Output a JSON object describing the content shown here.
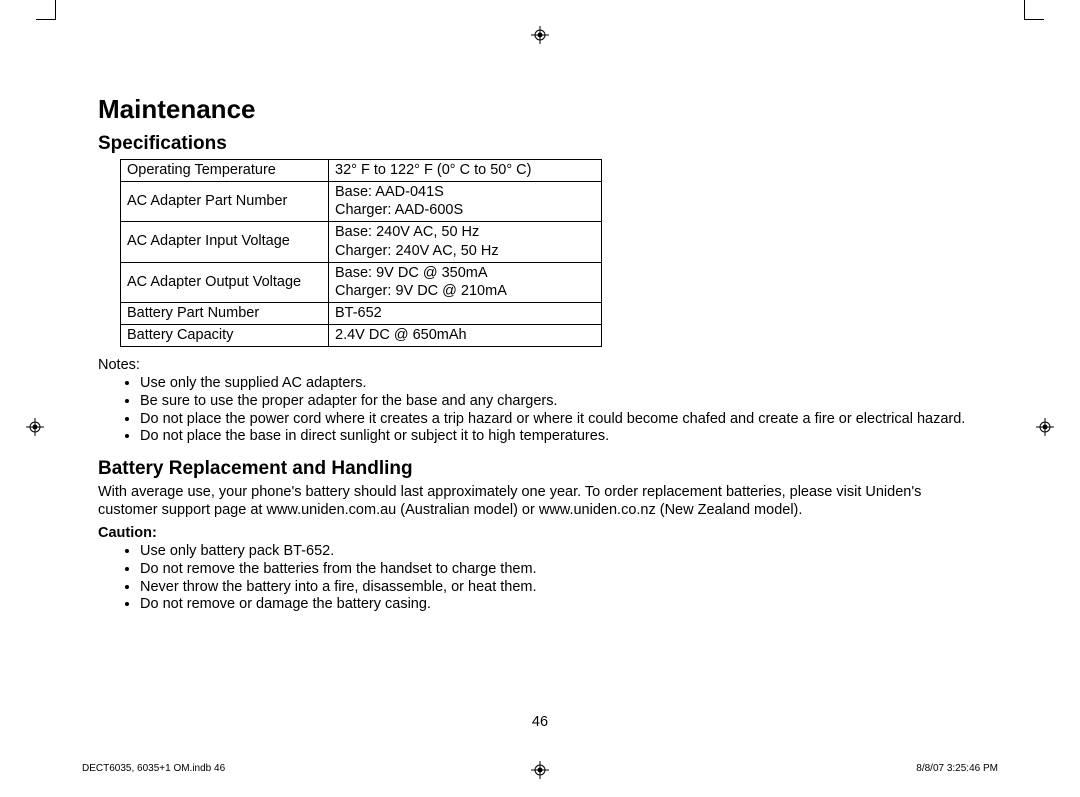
{
  "title": "Maintenance",
  "section1": {
    "heading": "Specifications",
    "table": {
      "rows": [
        {
          "label": "Operating Temperature",
          "value": "32° F to 122° F (0° C to 50° C)"
        },
        {
          "label": "AC Adapter Part Number",
          "value": "Base: AAD-041S\nCharger: AAD-600S"
        },
        {
          "label": "AC Adapter Input Voltage",
          "value": "Base: 240V AC, 50 Hz\nCharger: 240V AC, 50 Hz"
        },
        {
          "label": "AC Adapter Output Voltage",
          "value": "Base: 9V DC @ 350mA\nCharger: 9V DC @ 210mA"
        },
        {
          "label": "Battery Part Number",
          "value": "BT-652"
        },
        {
          "label": "Battery Capacity",
          "value": "2.4V DC @ 650mAh"
        }
      ]
    },
    "notes_label": "Notes:",
    "notes": [
      "Use only the supplied AC adapters.",
      "Be sure to use the proper adapter for the base and any chargers.",
      "Do not place the power cord where it creates a trip hazard or where it could become chafed and create a fire or electrical hazard.",
      "Do not place the base in direct sunlight or subject it to high temperatures."
    ]
  },
  "section2": {
    "heading": "Battery Replacement and Handling",
    "paragraph": "With average use, your phone's battery should last approximately one year. To order replacement batteries, please visit Uniden's customer support page at www.uniden.com.au (Australian model) or www.uniden.co.nz (New Zealand model).",
    "caution_label": "Caution:",
    "cautions": [
      "Use only battery pack BT-652.",
      "Do not remove the batteries from the handset to charge them.",
      "Never throw the battery into a fire, disassemble, or heat them.",
      "Do not remove or damage the battery casing."
    ]
  },
  "page_number": "46",
  "footer_left": "DECT6035, 6035+1 OM.indb   46",
  "footer_right": "8/8/07   3:25:46 PM"
}
